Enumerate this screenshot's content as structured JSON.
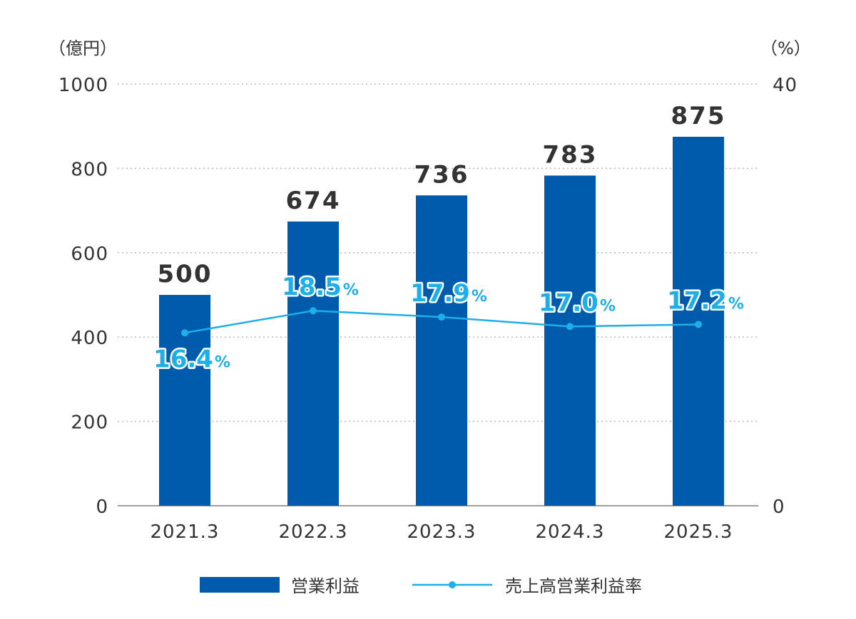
{
  "chart_data": {
    "type": "bar",
    "categories": [
      "2021.3",
      "2022.3",
      "2023.3",
      "2024.3",
      "2025.3"
    ],
    "series": [
      {
        "name": "営業利益",
        "kind": "bar",
        "axis": "left",
        "color": "#005bac",
        "values": [
          500,
          674,
          736,
          783,
          875
        ]
      },
      {
        "name": "売上高営業利益率",
        "kind": "line",
        "axis": "right",
        "color": "#1eaee8",
        "values": [
          16.4,
          18.5,
          17.9,
          17.0,
          17.2
        ],
        "labels": [
          "16.4",
          "18.5",
          "17.9",
          "17.0",
          "17.2"
        ],
        "label_suffix": "%"
      }
    ],
    "y_left": {
      "unit": "（億円）",
      "ylim": [
        0,
        1000
      ],
      "ticks": [
        "0",
        "200",
        "400",
        "600",
        "800",
        "1000"
      ]
    },
    "y_right": {
      "unit": "（%）",
      "ylim": [
        0,
        40
      ],
      "ticks": [
        "0",
        "40"
      ]
    },
    "legend_position": "bottom-center",
    "grid": "dotted"
  }
}
